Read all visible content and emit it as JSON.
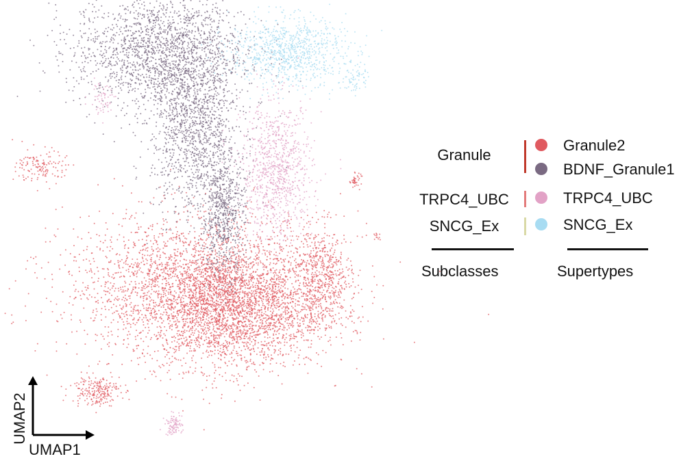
{
  "chart_data": {
    "type": "scatter",
    "xlabel": "UMAP1",
    "ylabel": "UMAP2",
    "grid": false,
    "legend_placement": "right",
    "subclass_title": "Subclasses",
    "supertype_title": "Supertypes",
    "subclasses": [
      {
        "name": "Granule",
        "color": "#c0392b"
      },
      {
        "name": "TRPC4_UBC",
        "color": "#e37b7b"
      },
      {
        "name": "SNCG_Ex",
        "color": "#d9d9a6"
      }
    ],
    "supertypes": [
      {
        "name": "Granule2",
        "color": "#e05a60",
        "subclass": "Granule"
      },
      {
        "name": "BDNF_Granule1",
        "color": "#7a6a82",
        "subclass": "Granule"
      },
      {
        "name": "TRPC4_UBC",
        "color": "#e2a2c6",
        "subclass": "TRPC4_UBC"
      },
      {
        "name": "SNCG_Ex",
        "color": "#a8dcf2",
        "subclass": "SNCG_Ex"
      }
    ],
    "clusters": [
      {
        "supertype": "Granule2",
        "cx": 0.58,
        "cy": 0.3,
        "sx": 0.13,
        "sy": 0.07,
        "n": 2600
      },
      {
        "supertype": "Granule2",
        "cx": 0.49,
        "cy": 0.36,
        "sx": 0.19,
        "sy": 0.08,
        "n": 2200
      },
      {
        "supertype": "Granule2",
        "cx": 0.84,
        "cy": 0.37,
        "sx": 0.04,
        "sy": 0.06,
        "n": 520
      },
      {
        "supertype": "Granule2",
        "cx": 0.2,
        "cy": 0.11,
        "sx": 0.035,
        "sy": 0.018,
        "n": 220
      },
      {
        "supertype": "Granule2",
        "cx": 0.05,
        "cy": 0.63,
        "sx": 0.035,
        "sy": 0.02,
        "n": 140
      },
      {
        "supertype": "Granule2",
        "cx": 0.93,
        "cy": 0.6,
        "sx": 0.008,
        "sy": 0.008,
        "n": 40
      },
      {
        "supertype": "Granule2",
        "cx": 0.99,
        "cy": 0.47,
        "sx": 0.005,
        "sy": 0.005,
        "n": 12
      },
      {
        "supertype": "BDNF_Granule1",
        "cx": 0.38,
        "cy": 0.9,
        "sx": 0.12,
        "sy": 0.07,
        "n": 1900
      },
      {
        "supertype": "BDNF_Granule1",
        "cx": 0.48,
        "cy": 0.72,
        "sx": 0.06,
        "sy": 0.1,
        "n": 1300
      },
      {
        "supertype": "BDNF_Granule1",
        "cx": 0.56,
        "cy": 0.52,
        "sx": 0.03,
        "sy": 0.07,
        "n": 650
      },
      {
        "supertype": "TRPC4_UBC",
        "cx": 0.71,
        "cy": 0.62,
        "sx": 0.05,
        "sy": 0.08,
        "n": 900
      },
      {
        "supertype": "TRPC4_UBC",
        "cx": 0.42,
        "cy": 0.03,
        "sx": 0.012,
        "sy": 0.012,
        "n": 90
      },
      {
        "supertype": "TRPC4_UBC",
        "cx": 0.22,
        "cy": 0.79,
        "sx": 0.02,
        "sy": 0.02,
        "n": 60
      },
      {
        "supertype": "SNCG_Ex",
        "cx": 0.74,
        "cy": 0.9,
        "sx": 0.08,
        "sy": 0.04,
        "n": 900
      },
      {
        "supertype": "SNCG_Ex",
        "cx": 0.93,
        "cy": 0.84,
        "sx": 0.02,
        "sy": 0.02,
        "n": 70
      }
    ]
  }
}
